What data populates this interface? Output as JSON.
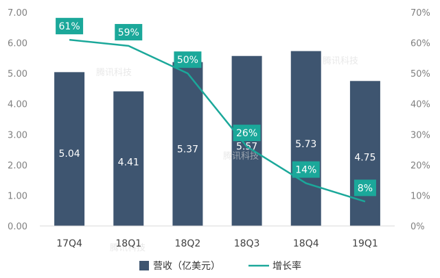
{
  "chart_data": {
    "type": "bar",
    "categories": [
      "17Q4",
      "18Q1",
      "18Q2",
      "18Q3",
      "18Q4",
      "19Q1"
    ],
    "series": [
      {
        "name": "营收（亿美元）",
        "type": "bar",
        "axis": "left",
        "values": [
          5.04,
          4.41,
          5.37,
          5.57,
          5.73,
          4.75
        ],
        "labels": [
          "5.04",
          "4.41",
          "5.37",
          "5.57",
          "5.73",
          "4.75"
        ]
      },
      {
        "name": "增长率",
        "type": "line",
        "axis": "right",
        "values": [
          61,
          59,
          50,
          26,
          14,
          8
        ],
        "labels": [
          "61%",
          "59%",
          "50%",
          "26%",
          "14%",
          "8%"
        ]
      }
    ],
    "y_left": {
      "min": 0,
      "max": 7,
      "step": 1,
      "ticks": [
        "0.00",
        "1.00",
        "2.00",
        "3.00",
        "4.00",
        "5.00",
        "6.00",
        "7.00"
      ]
    },
    "y_right": {
      "min": 0,
      "max": 70,
      "step": 10,
      "ticks": [
        "0%",
        "10%",
        "20%",
        "30%",
        "40%",
        "50%",
        "60%",
        "70%"
      ]
    },
    "grid": false,
    "legend": "bottom",
    "watermark": "腾讯科技",
    "colors": {
      "bar": "#3e5570",
      "line": "#1ba89a",
      "label_box": "#1ba89a"
    }
  }
}
